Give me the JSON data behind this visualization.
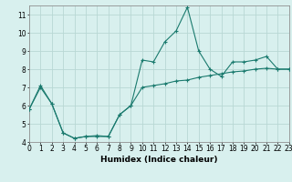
{
  "xlabel": "Humidex (Indice chaleur)",
  "x_min": 0,
  "x_max": 23,
  "y_min": 4,
  "y_max": 11.5,
  "background_color": "#d8f0ee",
  "grid_color": "#b8d8d4",
  "line_color": "#1a7a6e",
  "series1_x": [
    0,
    1,
    2,
    3,
    4,
    5,
    6,
    7,
    8,
    9,
    10,
    11,
    12,
    13,
    14,
    15,
    16,
    17,
    18,
    19,
    20,
    21,
    22,
    23
  ],
  "series1_y": [
    5.8,
    7.1,
    6.1,
    4.5,
    4.2,
    4.3,
    4.3,
    4.3,
    5.5,
    6.0,
    8.5,
    8.4,
    9.5,
    10.1,
    11.4,
    9.0,
    8.0,
    7.6,
    8.4,
    8.4,
    8.5,
    8.7,
    8.0,
    8.0
  ],
  "series2_x": [
    0,
    1,
    2,
    3,
    4,
    5,
    6,
    7,
    8,
    9,
    10,
    11,
    12,
    13,
    14,
    15,
    16,
    17,
    18,
    19,
    20,
    21,
    22,
    23
  ],
  "series2_y": [
    5.8,
    7.0,
    6.1,
    4.5,
    4.2,
    4.3,
    4.35,
    4.3,
    5.5,
    6.0,
    7.0,
    7.1,
    7.2,
    7.35,
    7.4,
    7.55,
    7.65,
    7.75,
    7.85,
    7.9,
    8.0,
    8.05,
    8.0,
    8.0
  ],
  "yticks": [
    4,
    5,
    6,
    7,
    8,
    9,
    10,
    11
  ],
  "xticks": [
    0,
    1,
    2,
    3,
    4,
    5,
    6,
    7,
    8,
    9,
    10,
    11,
    12,
    13,
    14,
    15,
    16,
    17,
    18,
    19,
    20,
    21,
    22,
    23
  ]
}
